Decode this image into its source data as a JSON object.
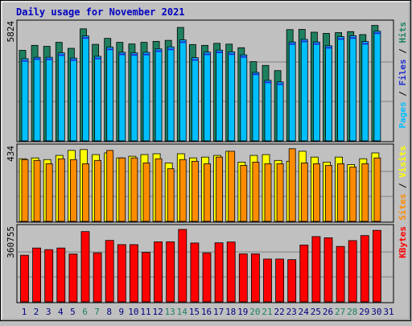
{
  "title": "Daily usage for November 2021",
  "colors": {
    "background": "#c0c0c0",
    "panel": "#c0c0c0",
    "title": "#0000c0",
    "hits": "#1e8060",
    "files": "#00bfff",
    "pages": "#2030d0",
    "visits": "#ffff00",
    "sites": "#ff8c00",
    "kbytes": "#ff0000",
    "weekend": "#1e8060",
    "day": "#000080"
  },
  "panels": {
    "hits": {
      "max_label": "5824",
      "legend": [
        {
          "text": "Pages",
          "color": "#00bfff"
        },
        {
          "text": " / ",
          "color": "#000000"
        },
        {
          "text": "Files",
          "color": "#2030d0"
        },
        {
          "text": " / ",
          "color": "#000000"
        },
        {
          "text": "Hits",
          "color": "#1e8060"
        }
      ]
    },
    "visits": {
      "max_label": "434",
      "legend": [
        {
          "text": "Sites",
          "color": "#ff8c00"
        },
        {
          "text": " / ",
          "color": "#000000"
        },
        {
          "text": "Visits",
          "color": "#ffff00"
        }
      ]
    },
    "kbytes": {
      "max_label": "360755",
      "legend": [
        {
          "text": "KBytes",
          "color": "#ff0000"
        }
      ]
    }
  },
  "chart_data": {
    "type": "bar",
    "title": "Daily usage for November 2021",
    "categories": [
      "1",
      "2",
      "3",
      "4",
      "5",
      "6",
      "7",
      "8",
      "9",
      "10",
      "11",
      "12",
      "13",
      "14",
      "15",
      "16",
      "17",
      "18",
      "19",
      "20",
      "21",
      "22",
      "23",
      "24",
      "25",
      "26",
      "27",
      "28",
      "29",
      "30",
      "31"
    ],
    "weekend_days": [
      "6",
      "7",
      "13",
      "14",
      "20",
      "21",
      "27",
      "28"
    ],
    "panels": [
      {
        "name": "hits",
        "ylim": [
          0,
          5824
        ],
        "series": [
          {
            "name": "Hits",
            "values": [
              4550,
              4800,
              4750,
              4950,
              4650,
              5630,
              4850,
              5150,
              4950,
              4870,
              4950,
              5000,
              5050,
              5700,
              4840,
              4800,
              4900,
              4860,
              4680,
              3980,
              3790,
              3530,
              5590,
              5600,
              5460,
              5400,
              5440,
              5490,
              5340,
              5800,
              null
            ]
          },
          {
            "name": "Files",
            "values": [
              4130,
              4200,
              4200,
              4420,
              4160,
              5270,
              4250,
              4710,
              4450,
              4420,
              4450,
              4620,
              4720,
              5070,
              4180,
              4460,
              4560,
              4470,
              4320,
              3440,
              3040,
              2960,
              4970,
              5100,
              4970,
              4780,
              5240,
              5280,
              4990,
              5510,
              null
            ]
          },
          {
            "name": "Pages",
            "values": [
              4060,
              4150,
              4140,
              4350,
              4100,
              5210,
              4180,
              4640,
              4390,
              4360,
              4380,
              4550,
              4640,
              5000,
              4110,
              4390,
              4490,
              4400,
              4260,
              3390,
              2980,
              2890,
              4910,
              5040,
              4910,
              4720,
              5160,
              5210,
              4920,
              5450,
              null
            ]
          }
        ]
      },
      {
        "name": "visits",
        "ylim": [
          0,
          434
        ],
        "series": [
          {
            "name": "Visits",
            "values": [
              375,
              380,
              370,
              395,
              425,
              430,
              400,
              410,
              380,
              390,
              400,
              405,
              350,
              405,
              380,
              385,
              395,
              420,
              355,
              395,
              400,
              365,
              360,
              420,
              385,
              355,
              385,
              340,
              375,
              410,
              null
            ]
          },
          {
            "name": "Sites",
            "values": [
              370,
              365,
              345,
              375,
              370,
              345,
              365,
              425,
              380,
              380,
              350,
              375,
              315,
              370,
              360,
              345,
              385,
              420,
              335,
              355,
              345,
              345,
              435,
              350,
              345,
              335,
              345,
              325,
              345,
              380,
              null
            ]
          }
        ]
      },
      {
        "name": "kbytes",
        "ylim": [
          0,
          360755
        ],
        "series": [
          {
            "name": "KBytes",
            "values": [
              232000,
              268000,
              260000,
              268000,
              238000,
              350000,
              244000,
              306000,
              285000,
              285000,
              246000,
              299000,
              299000,
              360755,
              293000,
              244000,
              294000,
              298000,
              239000,
              239000,
              213000,
              213000,
              210000,
              283000,
              325000,
              319000,
              276000,
              305000,
              330000,
              356000,
              null
            ]
          }
        ]
      }
    ]
  }
}
